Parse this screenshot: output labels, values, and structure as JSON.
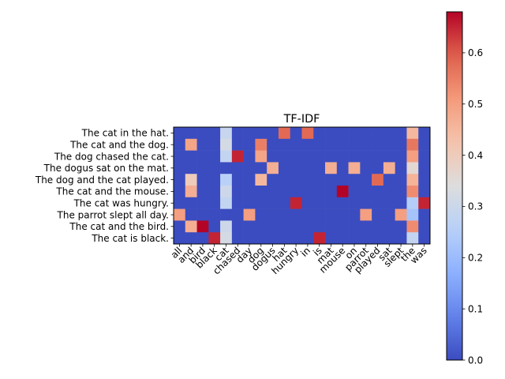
{
  "chart_data": {
    "type": "heatmap",
    "title": "TF-IDF",
    "rows": [
      "The cat in the hat.",
      "The cat and the dog.",
      "The dog chased the cat.",
      "The dogus sat on the mat.",
      "The dog and the cat played.",
      "The cat and the mouse.",
      "The cat was hungry.",
      "The parrot slept all day.",
      "The cat and the bird.",
      "The cat is black."
    ],
    "columns": [
      "all",
      "and",
      "bird",
      "black",
      "cat",
      "chased",
      "day",
      "dog",
      "dogus",
      "hat",
      "hungry",
      "in",
      "is",
      "mat",
      "mouse",
      "on",
      "parrot",
      "played",
      "sat",
      "slept",
      "the",
      "was"
    ],
    "values": [
      [
        0,
        0,
        0,
        0,
        0.29,
        0,
        0,
        0,
        0,
        0.58,
        0,
        0.58,
        0,
        0,
        0,
        0,
        0,
        0,
        0,
        0,
        0.45,
        0
      ],
      [
        0,
        0.49,
        0,
        0,
        0.32,
        0,
        0,
        0.55,
        0,
        0,
        0,
        0,
        0,
        0,
        0,
        0,
        0,
        0,
        0,
        0,
        0.56,
        0
      ],
      [
        0,
        0,
        0,
        0,
        0.28,
        0.65,
        0,
        0.49,
        0,
        0,
        0,
        0,
        0,
        0,
        0,
        0,
        0,
        0,
        0,
        0,
        0.5,
        0
      ],
      [
        0,
        0,
        0,
        0,
        0,
        0,
        0,
        0,
        0.47,
        0,
        0,
        0,
        0,
        0.47,
        0,
        0.47,
        0,
        0,
        0.47,
        0,
        0.36,
        0
      ],
      [
        0,
        0.4,
        0,
        0,
        0.26,
        0,
        0,
        0.45,
        0,
        0,
        0,
        0,
        0,
        0,
        0,
        0,
        0,
        0.58,
        0,
        0,
        0.46,
        0
      ],
      [
        0,
        0.47,
        0,
        0,
        0.3,
        0,
        0,
        0,
        0,
        0,
        0,
        0,
        0,
        0,
        0.68,
        0,
        0,
        0,
        0,
        0,
        0.53,
        0
      ],
      [
        0,
        0,
        0,
        0,
        0.28,
        0,
        0,
        0,
        0,
        0,
        0.65,
        0,
        0,
        0,
        0,
        0,
        0,
        0,
        0,
        0,
        0.25,
        0.65
      ],
      [
        0.5,
        0,
        0,
        0,
        0,
        0,
        0.5,
        0,
        0,
        0,
        0,
        0,
        0,
        0,
        0,
        0,
        0.5,
        0,
        0,
        0.5,
        0.22,
        0
      ],
      [
        0,
        0.47,
        0.68,
        0,
        0.3,
        0,
        0,
        0,
        0,
        0,
        0,
        0,
        0,
        0,
        0,
        0,
        0,
        0,
        0,
        0,
        0.53,
        0
      ],
      [
        0,
        0,
        0,
        0.65,
        0.32,
        0,
        0,
        0,
        0,
        0,
        0,
        0,
        0.65,
        0,
        0,
        0,
        0,
        0,
        0,
        0,
        0.28,
        0
      ]
    ],
    "colormap": "coolwarm",
    "colorbar": {
      "min": 0,
      "max": 0.68,
      "ticks": [
        "0.0",
        "0.1",
        "0.2",
        "0.3",
        "0.4",
        "0.5",
        "0.6"
      ]
    }
  }
}
